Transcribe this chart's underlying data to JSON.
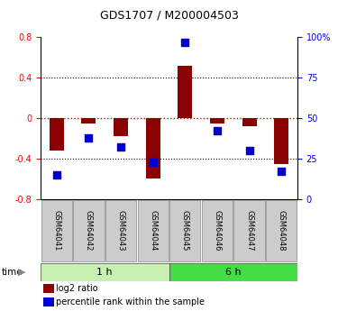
{
  "title": "GDS1707 / M200004503",
  "samples": [
    "GSM64041",
    "GSM64042",
    "GSM64043",
    "GSM64044",
    "GSM64045",
    "GSM64046",
    "GSM64047",
    "GSM64048"
  ],
  "log2_ratio": [
    -0.32,
    -0.05,
    -0.18,
    -0.6,
    0.52,
    -0.05,
    -0.08,
    -0.45
  ],
  "percentile_rank": [
    15,
    38,
    32,
    23,
    97,
    42,
    30,
    17
  ],
  "groups": [
    {
      "label": "1 h",
      "start": 0,
      "end": 4,
      "color": "#c8f0b0"
    },
    {
      "label": "6 h",
      "start": 4,
      "end": 8,
      "color": "#44dd44"
    }
  ],
  "bar_color": "#8b0000",
  "dot_color": "#0000cc",
  "ylim_left": [
    -0.8,
    0.8
  ],
  "ylim_right": [
    0,
    100
  ],
  "yticks_left": [
    -0.8,
    -0.4,
    0.0,
    0.4,
    0.8
  ],
  "yticks_right": [
    0,
    25,
    50,
    75,
    100
  ],
  "ytick_labels_right": [
    "0",
    "25",
    "50",
    "75",
    "100%"
  ],
  "legend_red": "log2 ratio",
  "legend_blue": "percentile rank within the sample",
  "time_label": "time",
  "dotted_lines": [
    -0.4,
    0.4
  ],
  "zero_line_color": "#cc0000",
  "label_box_color": "#cccccc",
  "title_fontsize": 9,
  "tick_fontsize": 7,
  "bar_width": 0.45
}
